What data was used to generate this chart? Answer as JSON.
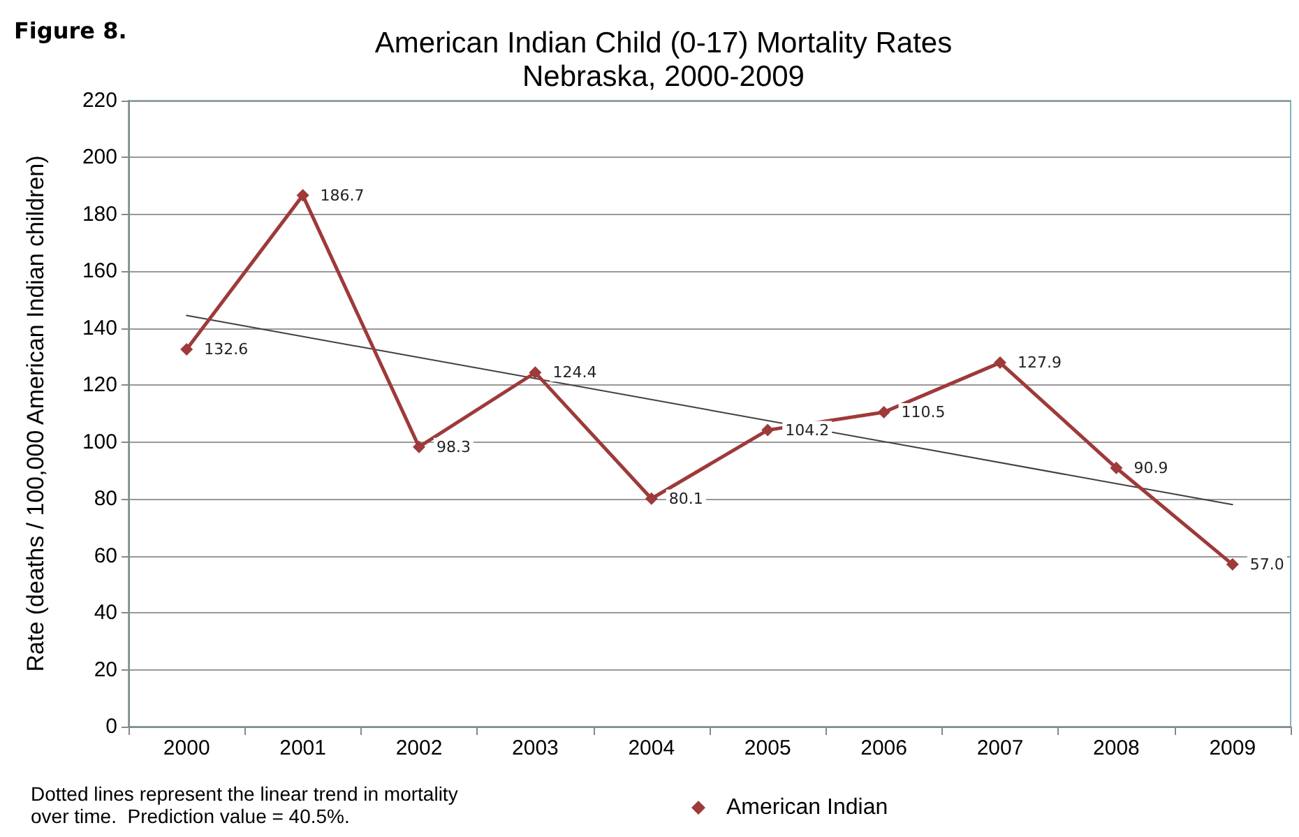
{
  "chart_data": {
    "type": "line",
    "title": "American Indian Child (0-17) Mortality Rates\nNebraska, 2000-2009",
    "ylabel": "Rate (deaths / 100,000 American Indian children)",
    "categories": [
      "2000",
      "2001",
      "2002",
      "2003",
      "2004",
      "2005",
      "2006",
      "2007",
      "2008",
      "2009"
    ],
    "series": [
      {
        "name": "American Indian",
        "color": "#9e3a3a",
        "values": [
          132.6,
          186.7,
          98.3,
          124.4,
          80.1,
          104.2,
          110.5,
          127.9,
          90.9,
          57.0
        ],
        "value_labels": [
          "132.6",
          "186.7",
          "98.3",
          "124.4",
          "80.1",
          "104.2",
          "110.5",
          "127.9",
          "90.9",
          "57.0"
        ],
        "marker": "diamond"
      },
      {
        "type": "line",
        "color": "#404040",
        "values": [
          144.5,
          null,
          null,
          null,
          null,
          null,
          null,
          null,
          null,
          78
        ],
        "marker": "none"
      }
    ],
    "ylim": [
      0,
      220
    ],
    "yticks": [
      0,
      20,
      40,
      60,
      80,
      100,
      120,
      140,
      160,
      180,
      200,
      220
    ],
    "grid": "y",
    "legend": "bottom",
    "annotations": [
      "Figure 8.",
      "Dotted lines represent the linear trend in mortality\nover time.  Prediction value = 40.5%."
    ]
  }
}
